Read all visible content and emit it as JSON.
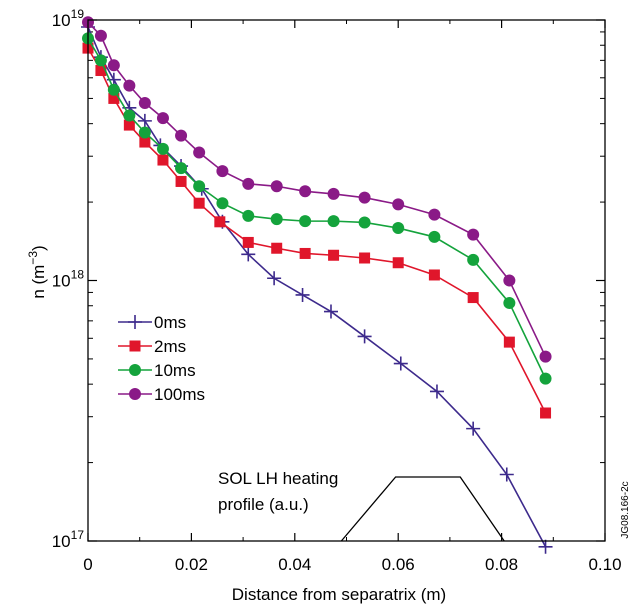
{
  "chart_data": {
    "type": "line",
    "yscale": "log",
    "xlabel": "Distance from separatrix (m)",
    "ylabel": "n (m",
    "ylabel_sup": "−3",
    "ylabel_close": ")",
    "xlim": [
      0,
      0.1
    ],
    "ylim": [
      1e+17,
      1e+19
    ],
    "x_ticks": [
      0,
      0.02,
      0.04,
      0.06,
      0.08,
      0.1
    ],
    "x_tick_labels": [
      "0",
      "0.02",
      "0.04",
      "0.06",
      "0.08",
      "0.10"
    ],
    "y_ticks": [
      {
        "value": 1e+17,
        "base": "10",
        "exp": "17"
      },
      {
        "value": 1e+18,
        "base": "10",
        "exp": "18"
      },
      {
        "value": 1e+19,
        "base": "10",
        "exp": "19"
      }
    ],
    "legend_position": "left-middle",
    "series": [
      {
        "name": "0ms",
        "color": "#3d2a8c",
        "marker": "plus",
        "x": [
          0.0,
          0.0025,
          0.005,
          0.008,
          0.011,
          0.014,
          0.018,
          0.022,
          0.026,
          0.031,
          0.036,
          0.0415,
          0.047,
          0.0535,
          0.0605,
          0.0675,
          0.0745,
          0.081,
          0.0885
        ],
        "y": [
          9.4e+18,
          7.2e+18,
          5.9e+18,
          4.6e+18,
          4.1e+18,
          3.3e+18,
          2.75e+18,
          2.25e+18,
          1.68e+18,
          1.26e+18,
          1.02e+18,
          8.8e+17,
          7.6e+17,
          6.1e+17,
          4.8e+17,
          3.75e+17,
          2.7e+17,
          1.8e+17,
          9.5e+16
        ]
      },
      {
        "name": "2ms",
        "color": "#e0162b",
        "marker": "square",
        "x": [
          0.0,
          0.0025,
          0.005,
          0.008,
          0.011,
          0.0145,
          0.018,
          0.0215,
          0.0255,
          0.031,
          0.0365,
          0.042,
          0.0475,
          0.0535,
          0.06,
          0.067,
          0.0745,
          0.0815,
          0.0885
        ],
        "y": [
          7.8e+18,
          6.4e+18,
          5e+18,
          3.95e+18,
          3.4e+18,
          2.9e+18,
          2.4e+18,
          1.98e+18,
          1.68e+18,
          1.4e+18,
          1.33e+18,
          1.27e+18,
          1.25e+18,
          1.22e+18,
          1.17e+18,
          1.05e+18,
          8.6e+17,
          5.8e+17,
          3.1e+17
        ]
      },
      {
        "name": "10ms",
        "color": "#14a33c",
        "marker": "circle",
        "x": [
          0.0,
          0.0025,
          0.005,
          0.008,
          0.011,
          0.0145,
          0.018,
          0.0215,
          0.026,
          0.031,
          0.0365,
          0.042,
          0.0475,
          0.0535,
          0.06,
          0.067,
          0.0745,
          0.0815,
          0.0885
        ],
        "y": [
          8.5e+18,
          7e+18,
          5.4e+18,
          4.3e+18,
          3.7e+18,
          3.2e+18,
          2.7e+18,
          2.3e+18,
          1.98e+18,
          1.77e+18,
          1.72e+18,
          1.69e+18,
          1.69e+18,
          1.67e+18,
          1.59e+18,
          1.47e+18,
          1.2e+18,
          8.2e+17,
          4.2e+17
        ]
      },
      {
        "name": "100ms",
        "color": "#8a1a87",
        "marker": "circle",
        "x": [
          0.0,
          0.0025,
          0.005,
          0.008,
          0.011,
          0.0145,
          0.018,
          0.0215,
          0.026,
          0.031,
          0.0365,
          0.042,
          0.0475,
          0.0535,
          0.06,
          0.067,
          0.0745,
          0.0815,
          0.0885
        ],
        "y": [
          9.8e+18,
          8.7e+18,
          6.7e+18,
          5.6e+18,
          4.8e+18,
          4.2e+18,
          3.6e+18,
          3.1e+18,
          2.63e+18,
          2.35e+18,
          2.3e+18,
          2.2e+18,
          2.15e+18,
          2.08e+18,
          1.96e+18,
          1.79e+18,
          1.5e+18,
          1e+18,
          5.1e+17
        ]
      }
    ],
    "annotation": {
      "lines": [
        "SOL LH heating",
        "profile (a.u.)"
      ],
      "profile_x": [
        0.049,
        0.0595,
        0.072,
        0.0805
      ],
      "profile_level": [
        0,
        1,
        1,
        0
      ]
    },
    "reference_code": "JG08.166-2c"
  }
}
